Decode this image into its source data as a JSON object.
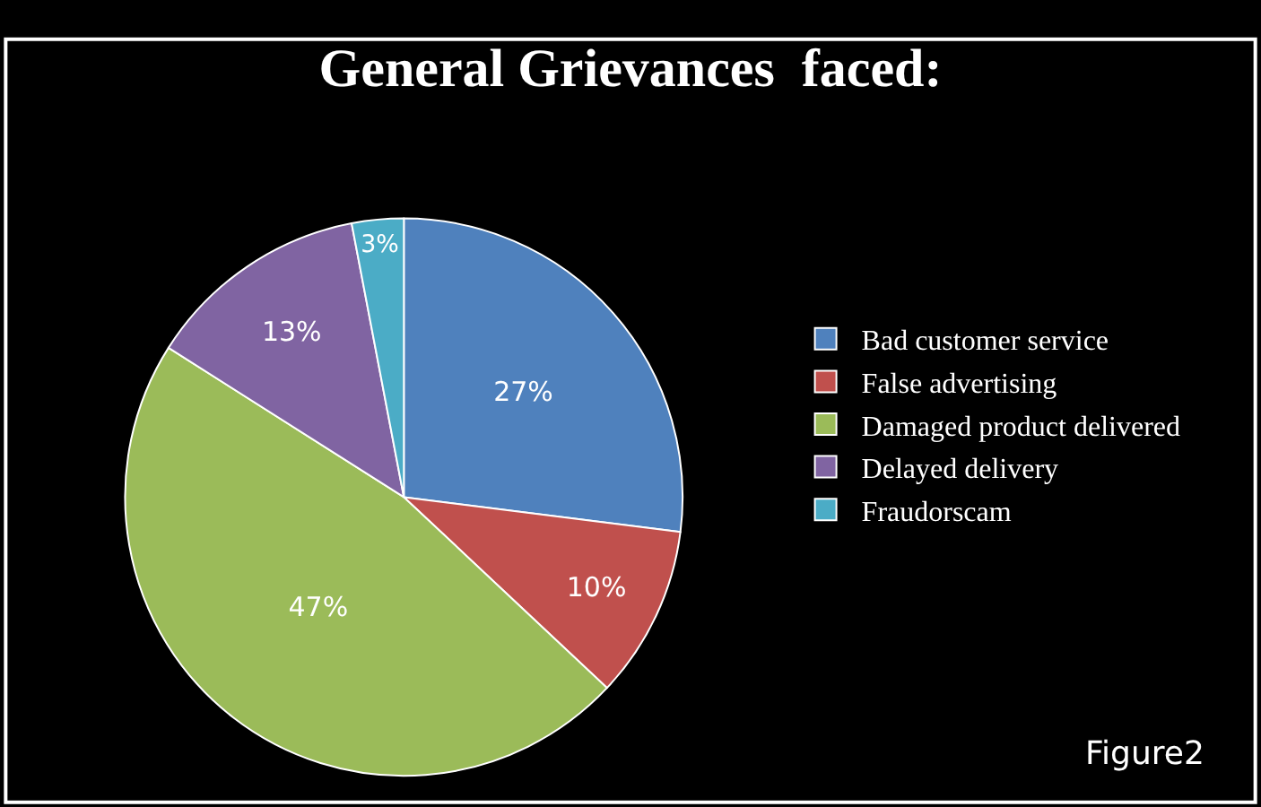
{
  "chart_data": {
    "type": "pie",
    "title": "General Grievances  faced:",
    "categories": [
      "Bad customer service",
      "False advertising",
      "Damaged product delivered",
      "Delayed delivery",
      "Fraudorscam"
    ],
    "values": [
      27,
      10,
      47,
      13,
      3
    ],
    "value_labels": [
      "27%",
      "10%",
      "47%",
      "13%",
      "3%"
    ],
    "colors": [
      "#4f81bd",
      "#c0504d",
      "#9bbb59",
      "#8064a2",
      "#4bacc6"
    ],
    "legend": "right",
    "annotations": [
      "Figure2"
    ]
  }
}
